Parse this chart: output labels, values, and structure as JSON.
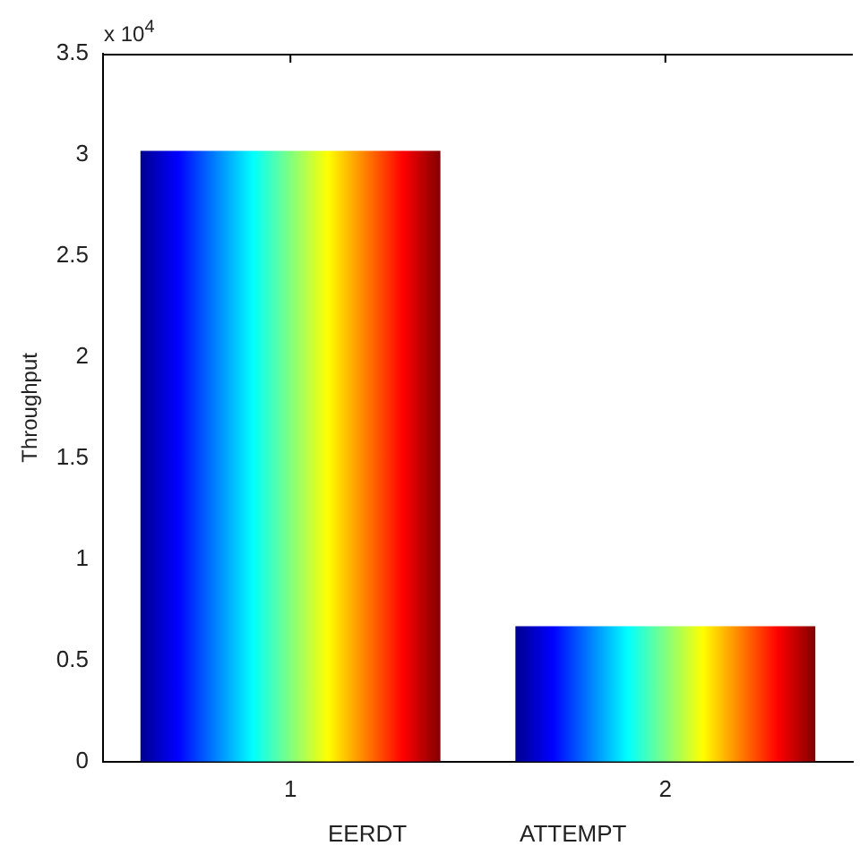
{
  "chart_data": {
    "type": "bar",
    "ylabel": "Throughput",
    "categories": [
      "1",
      "2"
    ],
    "values": [
      3.02,
      0.67
    ],
    "ylim": [
      0,
      3.5
    ],
    "yticks": [
      0,
      0.5,
      1,
      1.5,
      2,
      2.5,
      3,
      3.5
    ],
    "annotations": [
      "x 10$^{4}$",
      "EERDT",
      "ATTEMPT"
    ],
    "grid": false,
    "legend": false
  }
}
